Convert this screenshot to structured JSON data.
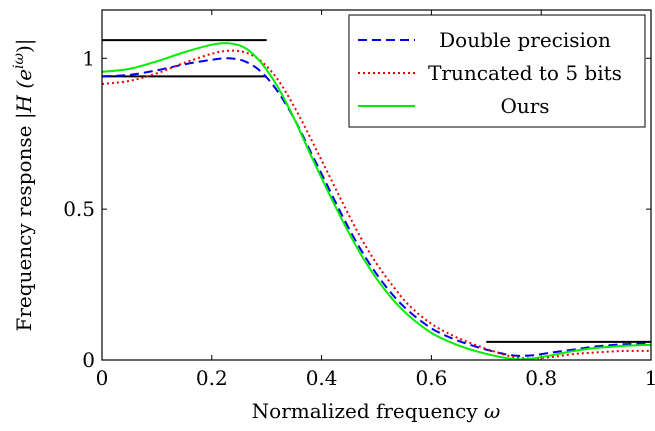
{
  "chart_data": {
    "type": "line",
    "xlabel_text": "Normalized frequency",
    "xlabel_symbol": "ω",
    "ylabel_text": "Frequency response",
    "ylabel_formula": "|H (e",
    "ylabel_sup": "iω",
    "ylabel_close": ")|",
    "xlim": [
      0,
      1
    ],
    "ylim": [
      0,
      1.16
    ],
    "xticks": [
      {
        "value": 0,
        "label": "0"
      },
      {
        "value": 0.2,
        "label": "0.2"
      },
      {
        "value": 0.4,
        "label": "0.4"
      },
      {
        "value": 0.6,
        "label": "0.6"
      },
      {
        "value": 0.8,
        "label": "0.8"
      },
      {
        "value": 1,
        "label": "1"
      }
    ],
    "yticks": [
      {
        "value": 0,
        "label": "0"
      },
      {
        "value": 0.5,
        "label": "0.5"
      },
      {
        "value": 1,
        "label": "1"
      }
    ],
    "legend_position": "top-right",
    "spec_lines": [
      {
        "x": [
          0,
          0.3
        ],
        "y": [
          1.06,
          1.06
        ]
      },
      {
        "x": [
          0,
          0.3
        ],
        "y": [
          0.94,
          0.94
        ]
      },
      {
        "x": [
          0.7,
          1.0
        ],
        "y": [
          0.06,
          0.06
        ]
      }
    ],
    "series": [
      {
        "name": "Double precision",
        "color": "#0000ee",
        "dash": "dashed",
        "x": [
          0,
          0.05,
          0.1,
          0.15,
          0.2,
          0.23,
          0.26,
          0.29,
          0.32,
          0.35,
          0.38,
          0.41,
          0.44,
          0.47,
          0.5,
          0.53,
          0.56,
          0.6,
          0.64,
          0.68,
          0.72,
          0.75,
          0.78,
          0.82,
          0.86,
          0.9,
          0.95,
          1.0
        ],
        "y": [
          0.94,
          0.945,
          0.96,
          0.98,
          0.995,
          1.0,
          0.99,
          0.955,
          0.89,
          0.8,
          0.69,
          0.58,
          0.47,
          0.37,
          0.285,
          0.215,
          0.16,
          0.105,
          0.07,
          0.045,
          0.025,
          0.015,
          0.015,
          0.025,
          0.035,
          0.045,
          0.052,
          0.055
        ]
      },
      {
        "name": "Truncated to 5 bits",
        "color": "#ee0000",
        "dash": "dotted",
        "x": [
          0,
          0.05,
          0.1,
          0.15,
          0.2,
          0.23,
          0.26,
          0.29,
          0.32,
          0.35,
          0.38,
          0.41,
          0.44,
          0.47,
          0.5,
          0.53,
          0.56,
          0.6,
          0.64,
          0.68,
          0.72,
          0.75,
          0.78,
          0.82,
          0.86,
          0.9,
          0.95,
          1.0
        ],
        "y": [
          0.915,
          0.925,
          0.95,
          0.985,
          1.015,
          1.025,
          1.02,
          0.99,
          0.93,
          0.84,
          0.735,
          0.625,
          0.515,
          0.41,
          0.32,
          0.245,
          0.18,
          0.12,
          0.08,
          0.05,
          0.025,
          0.01,
          0.005,
          0.01,
          0.02,
          0.025,
          0.03,
          0.03
        ]
      },
      {
        "name": "Ours",
        "color": "#00ee00",
        "dash": "solid",
        "x": [
          0,
          0.05,
          0.1,
          0.15,
          0.2,
          0.23,
          0.26,
          0.29,
          0.32,
          0.35,
          0.38,
          0.41,
          0.44,
          0.47,
          0.5,
          0.53,
          0.56,
          0.6,
          0.64,
          0.68,
          0.72,
          0.75,
          0.78,
          0.82,
          0.86,
          0.9,
          0.95,
          1.0
        ],
        "y": [
          0.955,
          0.965,
          0.99,
          1.02,
          1.045,
          1.05,
          1.035,
          0.985,
          0.905,
          0.8,
          0.68,
          0.565,
          0.455,
          0.355,
          0.27,
          0.2,
          0.145,
          0.09,
          0.055,
          0.03,
          0.012,
          0.003,
          0.004,
          0.016,
          0.03,
          0.04,
          0.047,
          0.05
        ]
      }
    ]
  }
}
